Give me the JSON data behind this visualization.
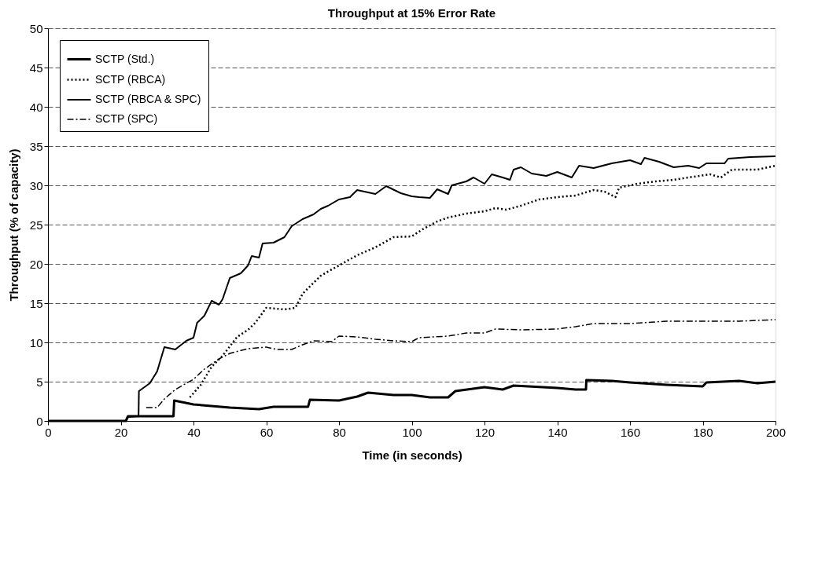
{
  "chart_data": {
    "type": "line",
    "title": "Throughput at 15% Error Rate",
    "xlabel": "Time (in seconds)",
    "ylabel": "Throughput (% of capacity)",
    "xlim": [
      0,
      200
    ],
    "xticks": [
      0,
      20,
      40,
      60,
      80,
      100,
      120,
      140,
      160,
      180,
      200
    ],
    "ylim": [
      0,
      50
    ],
    "yticks": [
      0,
      5,
      10,
      15,
      20,
      25,
      30,
      35,
      40,
      45,
      50
    ],
    "grid": "y",
    "legend": "top left",
    "marker": "none",
    "series": [
      {
        "name": "SCTP (Std.)",
        "color": "#000000",
        "line_style": "solid",
        "x": [
          0,
          21.4,
          22,
          34.5,
          34.7,
          40,
          50,
          58,
          62,
          71.5,
          72,
          80,
          85,
          88,
          95,
          100,
          105,
          110,
          112,
          120,
          125,
          128,
          140,
          145,
          147.9,
          148,
          155,
          160,
          170,
          180,
          181,
          190,
          195,
          200
        ],
        "values": [
          0,
          0,
          0.6,
          0.6,
          2.6,
          2.1,
          1.7,
          1.5,
          1.8,
          1.8,
          2.7,
          2.6,
          3.1,
          3.6,
          3.3,
          3.3,
          3.0,
          3.0,
          3.8,
          4.3,
          4.0,
          4.5,
          4.2,
          4.0,
          4.0,
          5.2,
          5.1,
          4.9,
          4.6,
          4.4,
          4.9,
          5.1,
          4.8,
          5.0
        ]
      },
      {
        "name": "SCTP (RBCA)",
        "color": "#000000",
        "line_style": "dotted",
        "x": [
          39,
          42,
          45,
          48,
          52,
          55,
          57,
          60,
          65,
          68,
          70,
          75,
          80,
          85,
          90,
          95,
          100,
          103,
          107,
          110,
          115,
          120,
          123,
          126,
          130,
          135,
          140,
          145,
          150,
          153,
          156,
          157,
          162,
          167,
          172,
          176,
          182,
          185,
          188,
          195,
          200
        ],
        "values": [
          3.0,
          4.6,
          6.9,
          8.3,
          10.7,
          11.6,
          12.5,
          14.4,
          14.2,
          14.4,
          16.2,
          18.5,
          19.8,
          21.1,
          22.1,
          23.4,
          23.5,
          24.4,
          25.4,
          25.9,
          26.4,
          26.7,
          27.1,
          26.9,
          27.4,
          28.2,
          28.5,
          28.7,
          29.4,
          29.2,
          28.5,
          29.7,
          30.2,
          30.5,
          30.7,
          31.0,
          31.4,
          31.0,
          32.0,
          32.0,
          32.5
        ]
      },
      {
        "name": "SCTP (RBCA & SPC)",
        "color": "#000000",
        "line_style": "solid",
        "x": [
          0,
          21.5,
          22,
          24.9,
          25,
          28,
          30,
          32,
          35,
          38,
          40,
          41,
          43,
          45,
          47,
          48,
          50,
          53,
          55,
          56,
          58,
          59,
          62,
          65,
          67,
          70,
          73,
          75,
          77,
          80,
          83,
          85,
          90,
          93,
          97,
          100,
          102,
          105,
          107,
          110,
          111,
          115,
          117,
          120,
          122,
          125,
          127,
          128,
          130,
          133,
          137,
          140,
          144,
          146,
          150,
          155,
          160,
          163,
          164,
          168,
          172,
          176,
          179,
          181,
          186,
          187,
          193,
          200
        ],
        "values": [
          0,
          0,
          0.5,
          0.6,
          3.8,
          4.8,
          6.3,
          9.4,
          9.1,
          10.2,
          10.6,
          12.5,
          13.4,
          15.3,
          14.8,
          15.5,
          18.2,
          18.8,
          19.8,
          21.0,
          20.8,
          22.6,
          22.7,
          23.4,
          24.8,
          25.7,
          26.3,
          27.0,
          27.4,
          28.2,
          28.5,
          29.4,
          28.9,
          29.9,
          29.0,
          28.6,
          28.5,
          28.4,
          29.5,
          28.9,
          30.0,
          30.5,
          31.0,
          30.2,
          31.4,
          31.0,
          30.7,
          32.0,
          32.3,
          31.5,
          31.2,
          31.7,
          31.0,
          32.5,
          32.2,
          32.8,
          33.2,
          32.7,
          33.5,
          33.0,
          32.3,
          32.5,
          32.2,
          32.8,
          32.8,
          33.4,
          33.6,
          33.7
        ]
      },
      {
        "name": "SCTP (SPC)",
        "color": "#000000",
        "line_style": "dashed",
        "x": [
          27,
          30,
          32,
          35,
          40,
          43,
          47,
          50,
          55,
          60,
          63,
          67,
          70,
          73,
          78,
          80,
          85,
          90,
          95,
          100,
          102,
          106,
          110,
          115,
          120,
          123,
          130,
          140,
          145,
          150,
          160,
          170,
          180,
          190,
          200
        ],
        "values": [
          1.7,
          1.7,
          2.8,
          4.0,
          5.3,
          6.6,
          7.9,
          8.6,
          9.2,
          9.4,
          9.1,
          9.1,
          9.7,
          10.2,
          10.1,
          10.8,
          10.7,
          10.4,
          10.2,
          10.1,
          10.6,
          10.7,
          10.8,
          11.2,
          11.2,
          11.7,
          11.6,
          11.7,
          12.0,
          12.4,
          12.4,
          12.7,
          12.7,
          12.7,
          12.9
        ]
      }
    ]
  }
}
